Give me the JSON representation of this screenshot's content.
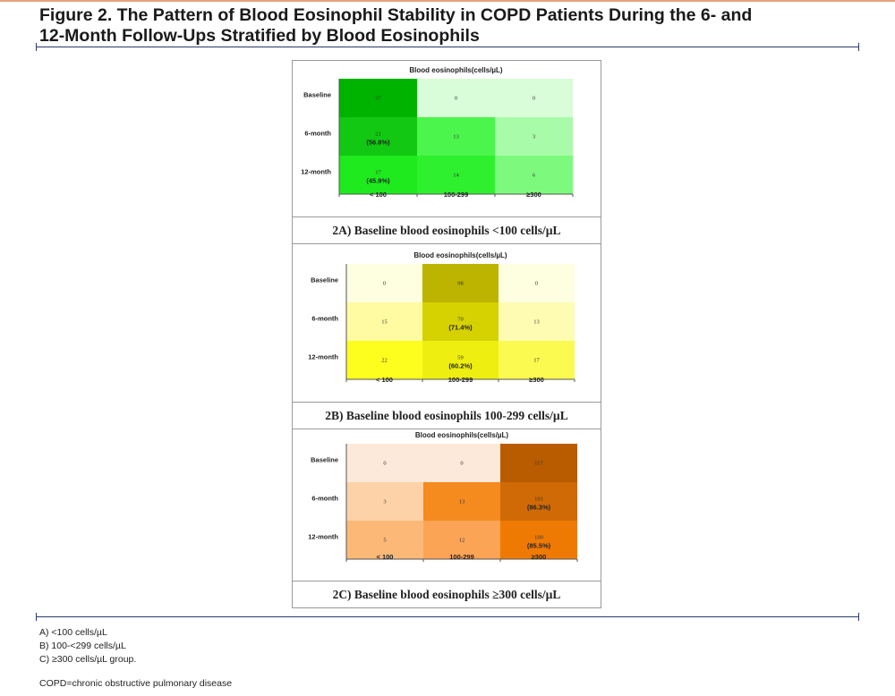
{
  "figure": {
    "title_line1": "Figure 2. The Pattern of Blood Eosinophil Stability in COPD Patients During the 6- and",
    "title_line2": "12-Month Follow-Ups Stratified by Blood Eosinophils"
  },
  "chart_data": [
    {
      "type": "heatmap",
      "title": "Blood eosinophils(cells/µL)",
      "caption": "2A) Baseline blood eosinophils <100 cells/µL",
      "columns": [
        "< 100",
        "100-299",
        "≥300"
      ],
      "rows": [
        "Baseline",
        "6-month",
        "12-month"
      ],
      "values": [
        [
          37,
          0,
          0
        ],
        [
          21,
          13,
          3
        ],
        [
          17,
          14,
          6
        ]
      ],
      "percent_labels": [
        [
          "",
          "",
          ""
        ],
        [
          "(56.8%)",
          "",
          ""
        ],
        [
          "(45.9%)",
          "",
          ""
        ]
      ],
      "colors": [
        [
          "#00b300",
          "#d9fcd9",
          "#d9fcd9"
        ],
        [
          "#12c812",
          "#4cf54c",
          "#a8fba8"
        ],
        [
          "#1eea1e",
          "#2ef02e",
          "#7dfa7d"
        ]
      ]
    },
    {
      "type": "heatmap",
      "title": "Blood eosinophils(cells/µL)",
      "caption": "2B) Baseline blood eosinophils 100-299 cells/µL",
      "columns": [
        "< 100",
        "100-299",
        "≥300"
      ],
      "rows": [
        "Baseline",
        "6-month",
        "12-month"
      ],
      "values": [
        [
          0,
          98,
          0
        ],
        [
          15,
          70,
          13
        ],
        [
          22,
          59,
          17
        ]
      ],
      "percent_labels": [
        [
          "",
          "",
          ""
        ],
        [
          "",
          "(71.4%)",
          ""
        ],
        [
          "",
          "(60.2%)",
          ""
        ]
      ],
      "colors": [
        [
          "#fefee0",
          "#bdb400",
          "#fefee0"
        ],
        [
          "#fefba2",
          "#d6d100",
          "#fefcb3"
        ],
        [
          "#fefe1e",
          "#eeee10",
          "#fafa50"
        ]
      ]
    },
    {
      "type": "heatmap",
      "title": "Blood eosinophils(cells/µL)",
      "caption": "2C) Baseline blood eosinophils ≥300 cells/µL",
      "columns": [
        "< 100",
        "100-299",
        "≥300"
      ],
      "rows": [
        "Baseline",
        "6-month",
        "12-month"
      ],
      "values": [
        [
          0,
          0,
          117
        ],
        [
          3,
          13,
          101
        ],
        [
          5,
          12,
          100
        ]
      ],
      "percent_labels": [
        [
          "",
          "",
          ""
        ],
        [
          "",
          "",
          "(86.3%)"
        ],
        [
          "",
          "",
          "(85.5%)"
        ]
      ],
      "colors": [
        [
          "#fde9da",
          "#fde9da",
          "#b95c00"
        ],
        [
          "#fdd2a8",
          "#f58a1f",
          "#cf6a06"
        ],
        [
          "#fcb877",
          "#fba456",
          "#ee7a04"
        ]
      ]
    }
  ],
  "notes": {
    "line_a": "A) <100 cells/µL",
    "line_b": "B) 100-<299 cells/µL",
    "line_c": "C) ≥300 cells/µL group.",
    "abbreviation": "COPD=chronic obstructive pulmonary disease"
  }
}
